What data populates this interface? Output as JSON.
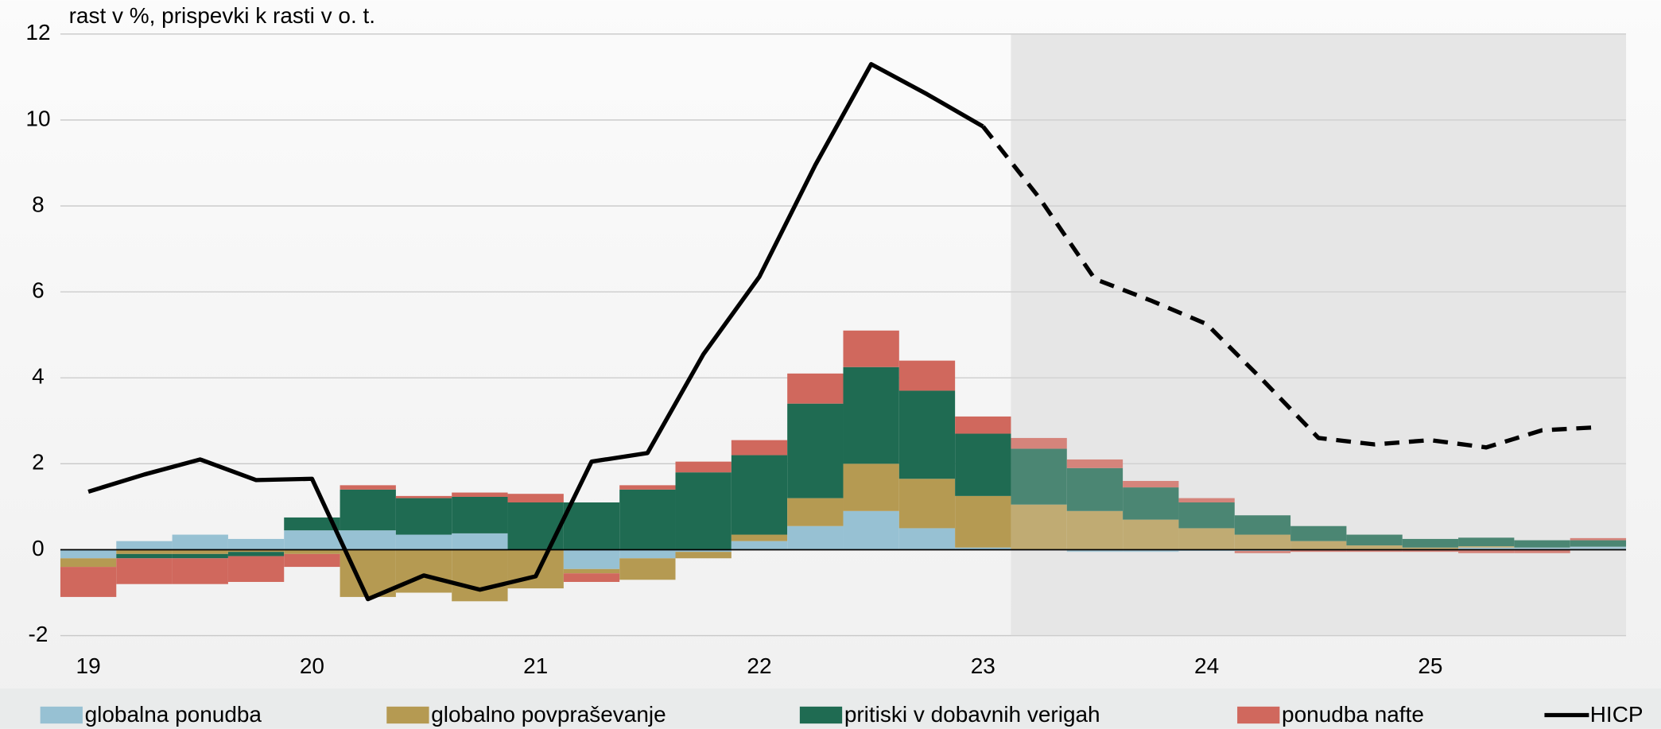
{
  "chart_data": {
    "type": "stacked_bar_line",
    "title": "rast v %, prispevki k rasti v o. t.",
    "categories": [
      "19",
      null,
      null,
      null,
      "20",
      null,
      null,
      null,
      "21",
      null,
      null,
      null,
      "22",
      null,
      null,
      null,
      "23",
      null,
      null,
      null,
      "24",
      null,
      null,
      null,
      "25",
      null,
      null,
      null
    ],
    "series": [
      {
        "name": "globalna ponudba",
        "color": "#97c1d3",
        "values": [
          -0.2,
          0.2,
          0.35,
          0.25,
          0.45,
          0.45,
          0.35,
          0.38,
          0,
          -0.45,
          -0.2,
          -0.05,
          0.2,
          0.55,
          0.9,
          0.5,
          0.05,
          0,
          -0.05,
          -0.05,
          -0.03,
          -0.03,
          0,
          0,
          0,
          0.05,
          0.05,
          0.07
        ]
      },
      {
        "name": "globalno povpraševanje",
        "color": "#b59a52",
        "values": [
          -0.2,
          -0.1,
          -0.1,
          -0.05,
          -0.1,
          -1.1,
          -1.0,
          -1.2,
          -0.9,
          -0.1,
          -0.5,
          -0.15,
          0.15,
          0.65,
          1.1,
          1.15,
          1.2,
          1.05,
          0.9,
          0.7,
          0.5,
          0.35,
          0.2,
          0.1,
          0.05,
          0.03,
          0,
          0
        ]
      },
      {
        "name": "pritiski v dobavnih verigah",
        "color": "#1f6b52",
        "values": [
          0,
          -0.1,
          -0.1,
          -0.1,
          0.3,
          0.95,
          0.85,
          0.85,
          1.1,
          1.1,
          1.4,
          1.8,
          1.85,
          2.2,
          2.25,
          2.05,
          1.45,
          1.3,
          1.0,
          0.75,
          0.6,
          0.45,
          0.35,
          0.25,
          0.2,
          0.2,
          0.17,
          0.15
        ]
      },
      {
        "name": "ponudba nafte",
        "color": "#d0685d",
        "values": [
          -0.7,
          -0.6,
          -0.6,
          -0.6,
          -0.3,
          0.1,
          0.05,
          0.1,
          0.2,
          -0.2,
          0.1,
          0.25,
          0.35,
          0.7,
          0.85,
          0.7,
          0.4,
          0.25,
          0.2,
          0.15,
          0.1,
          -0.05,
          -0.05,
          -0.05,
          -0.05,
          -0.08,
          -0.08,
          0.05
        ]
      },
      {
        "name": "HICP",
        "color": "#000000",
        "kind": "line",
        "values": [
          1.35,
          1.75,
          2.1,
          1.62,
          1.65,
          -1.15,
          -0.6,
          -0.93,
          -0.62,
          2.05,
          2.25,
          4.55,
          6.35,
          8.95,
          11.3,
          10.6,
          9.85,
          8.2,
          6.3,
          5.8,
          5.25,
          3.95,
          2.6,
          2.45,
          2.55,
          2.38,
          2.78,
          2.85
        ]
      }
    ],
    "projection": {
      "line_dashed_from": 16,
      "shaded_from": 17
    },
    "ylim": [
      -2,
      12
    ],
    "yticks": [
      -2,
      0,
      2,
      4,
      6,
      8,
      10,
      12
    ],
    "grid": true,
    "legend": "bottom"
  }
}
